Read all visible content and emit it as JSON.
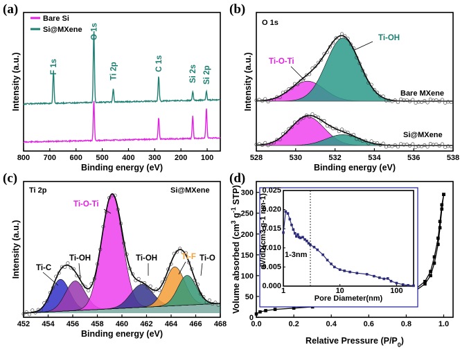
{
  "panels": {
    "a": "(a)",
    "b": "(b)",
    "c": "(c)",
    "d": "(d)"
  },
  "colors": {
    "magenta": "#e022e0",
    "teal": "#1d7f72",
    "teal_fill": "#2a9a8a",
    "pink_fill": "#ee44ee",
    "blue_fill": "#3535c8",
    "purple_fill": "#9b3db0",
    "navy_fill": "#3a3a8f",
    "orange_fill": "#f4a13c",
    "green_fill": "#3b9a78",
    "inset_line": "#1a1a9a",
    "dark_purple": "#2b2b7a"
  },
  "chart_data": [
    {
      "id": "a",
      "type": "line",
      "xlabel": "Binding energy (eV)",
      "ylabel": "Intensity (a.u.)",
      "xlim": [
        800,
        50
      ],
      "xticks": [
        800,
        700,
        600,
        500,
        400,
        300,
        200,
        100
      ],
      "legend": [
        "Bare Si",
        "Si@MXene"
      ],
      "series": [
        {
          "name": "Bare Si",
          "peaks": [
            [
              532,
              1.0
            ],
            [
              285,
              0.55
            ],
            [
              155,
              0.55
            ],
            [
              103,
              0.75
            ]
          ]
        },
        {
          "name": "Si@MXene",
          "peaks": [
            [
              686,
              0.45
            ],
            [
              532,
              1.0
            ],
            [
              458,
              0.18
            ],
            [
              285,
              0.35
            ],
            [
              155,
              0.12
            ],
            [
              103,
              0.12
            ]
          ]
        }
      ],
      "annotations": [
        "F 1s",
        "O 1s",
        "Ti 2p",
        "C 1s",
        "Si 2s",
        "Si 2p"
      ]
    },
    {
      "id": "b",
      "type": "area",
      "title": "O 1s",
      "xlabel": "Binding energy (eV)",
      "ylabel": "Intensity (a.u.)",
      "xlim": [
        528,
        538
      ],
      "xticks": [
        528,
        530,
        532,
        534,
        536,
        538
      ],
      "series": [
        {
          "name": "Ti-O-Ti",
          "sample": "Bare MXene",
          "center": 530.6,
          "height": 0.3
        },
        {
          "name": "Ti-OH",
          "sample": "Bare MXene",
          "center": 532.4,
          "height": 0.95
        },
        {
          "name": "Ti-O-Ti",
          "sample": "Si@MXene",
          "center": 530.6,
          "height": 0.8
        },
        {
          "name": "Ti-OH",
          "sample": "Si@MXene",
          "center": 532.4,
          "height": 0.3
        }
      ],
      "labels": [
        "Ti-O-Ti",
        "Ti-OH",
        "Bare MXene",
        "Si@MXene"
      ]
    },
    {
      "id": "c",
      "type": "area",
      "title": "Ti 2p",
      "sample": "Si@MXene",
      "xlabel": "Binding energy (eV)",
      "ylabel": "Intensity (a.u.)",
      "xlim": [
        452,
        468
      ],
      "xticks": [
        452,
        454,
        456,
        458,
        460,
        462,
        464,
        466,
        468
      ],
      "series": [
        {
          "name": "Ti-C",
          "center": 455.0,
          "height": 0.28
        },
        {
          "name": "Ti-OH",
          "center": 456.2,
          "height": 0.26
        },
        {
          "name": "Ti-O-Ti",
          "center": 459.2,
          "height": 1.0
        },
        {
          "name": "Ti-OH",
          "center": 461.6,
          "height": 0.2
        },
        {
          "name": "Ti-F",
          "center": 464.3,
          "height": 0.34
        },
        {
          "name": "Ti-O",
          "center": 465.3,
          "height": 0.26
        }
      ]
    },
    {
      "id": "d",
      "type": "line",
      "xlabel": "Relative Pressure (P/P0)",
      "ylabel": "Volume absorbed (cm3 g-1 STP)",
      "xlim": [
        0.0,
        1.05
      ],
      "ylim": [
        0,
        300
      ],
      "xticks": [
        "0.0",
        "0.2",
        "0.4",
        "0.6",
        "0.8",
        "1.0"
      ],
      "yticks": [
        "0",
        "50",
        "100",
        "150",
        "200",
        "250",
        "300"
      ],
      "series": [
        {
          "name": "adsorption",
          "points": [
            [
              0.0,
              8
            ],
            [
              0.02,
              13
            ],
            [
              0.05,
              16
            ],
            [
              0.1,
              19
            ],
            [
              0.2,
              22
            ],
            [
              0.3,
              25
            ],
            [
              0.4,
              28
            ],
            [
              0.5,
              32
            ],
            [
              0.6,
              37
            ],
            [
              0.7,
              43
            ],
            [
              0.8,
              54
            ],
            [
              0.85,
              64
            ],
            [
              0.9,
              80
            ],
            [
              0.93,
              100
            ],
            [
              0.95,
              130
            ],
            [
              0.97,
              175
            ],
            [
              0.98,
              215
            ],
            [
              0.99,
              260
            ],
            [
              1.0,
              295
            ]
          ]
        },
        {
          "name": "desorption",
          "points": [
            [
              1.0,
              295
            ],
            [
              0.99,
              270
            ],
            [
              0.98,
              230
            ],
            [
              0.97,
              190
            ],
            [
              0.95,
              145
            ],
            [
              0.93,
              110
            ],
            [
              0.9,
              86
            ],
            [
              0.85,
              68
            ],
            [
              0.8,
              57
            ],
            [
              0.7,
              45
            ],
            [
              0.6,
              38
            ],
            [
              0.5,
              33
            ],
            [
              0.4,
              29
            ]
          ]
        }
      ],
      "inset": {
        "xlabel": "Pore Diameter(nm)",
        "ylabel": "dV/dD(cm3 g-1 nm-1)",
        "xlim": [
          1,
          200
        ],
        "ylim": [
          0.0,
          0.025
        ],
        "xticks": [
          "1",
          "10",
          "100"
        ],
        "yticks": [
          "0.000",
          "0.005",
          "0.010",
          "0.015",
          "0.020",
          "0.025"
        ],
        "annotation": "1-3nm",
        "points": [
          [
            1.0,
            0.014
          ],
          [
            1.1,
            0.0195
          ],
          [
            1.2,
            0.019
          ],
          [
            1.3,
            0.0175
          ],
          [
            1.4,
            0.016
          ],
          [
            1.5,
            0.0148
          ],
          [
            1.6,
            0.0138
          ],
          [
            1.7,
            0.013
          ],
          [
            1.8,
            0.0135
          ],
          [
            1.9,
            0.0128
          ],
          [
            2.0,
            0.0126
          ],
          [
            2.2,
            0.0128
          ],
          [
            2.4,
            0.0122
          ],
          [
            2.6,
            0.0118
          ],
          [
            2.8,
            0.0112
          ],
          [
            3.0,
            0.0108
          ],
          [
            3.5,
            0.0102
          ],
          [
            4.0,
            0.0095
          ],
          [
            5.0,
            0.0082
          ],
          [
            6.0,
            0.0068
          ],
          [
            7.0,
            0.0058
          ],
          [
            8.0,
            0.005
          ],
          [
            10,
            0.0043
          ],
          [
            12,
            0.004
          ],
          [
            15,
            0.0037
          ],
          [
            20,
            0.0034
          ],
          [
            30,
            0.0031
          ],
          [
            40,
            0.0026
          ],
          [
            50,
            0.0022
          ],
          [
            60,
            0.0019
          ],
          [
            70,
            0.002
          ],
          [
            80,
            0.0013
          ],
          [
            100,
            0.0008
          ],
          [
            130,
            0.0004
          ],
          [
            160,
            0.0002
          ],
          [
            200,
            0.0001
          ]
        ]
      }
    }
  ]
}
